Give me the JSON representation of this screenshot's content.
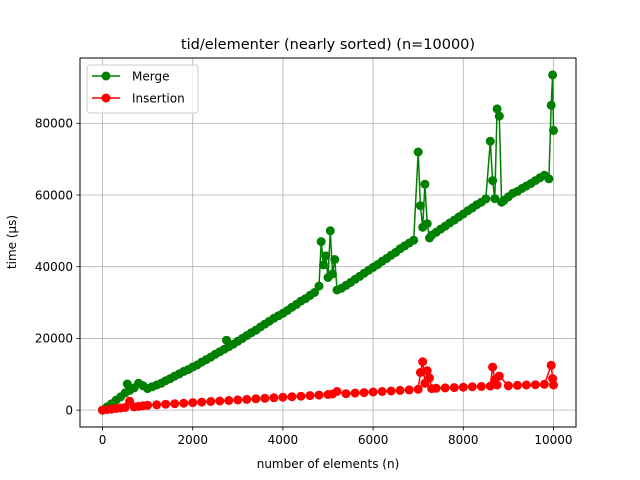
{
  "chart_data": {
    "type": "line",
    "title": "tid/elementer (nearly sorted) (n=10000)",
    "xlabel": "number of elements (n)",
    "ylabel": "time (µs)",
    "xlim": [
      -500,
      10500
    ],
    "ylim": [
      -4700,
      98200
    ],
    "x_ticks": [
      0,
      2000,
      4000,
      6000,
      8000,
      10000
    ],
    "y_ticks": [
      0,
      20000,
      40000,
      60000,
      80000
    ],
    "grid": true,
    "legend_position": "top-left",
    "series": [
      {
        "name": "Merge",
        "color": "#008000",
        "x": [
          0,
          100,
          200,
          300,
          400,
          500,
          550,
          600,
          700,
          800,
          900,
          1000,
          1100,
          1200,
          1300,
          1400,
          1500,
          1600,
          1700,
          1800,
          1900,
          2000,
          2100,
          2200,
          2300,
          2400,
          2500,
          2600,
          2700,
          2750,
          2800,
          2900,
          3000,
          3100,
          3200,
          3300,
          3400,
          3500,
          3600,
          3700,
          3800,
          3900,
          4000,
          4100,
          4200,
          4300,
          4400,
          4500,
          4600,
          4700,
          4800,
          4850,
          4900,
          4950,
          5000,
          5050,
          5100,
          5150,
          5200,
          5300,
          5400,
          5500,
          5600,
          5700,
          5800,
          5900,
          6000,
          6100,
          6200,
          6300,
          6400,
          6500,
          6600,
          6700,
          6800,
          6900,
          7000,
          7050,
          7100,
          7150,
          7200,
          7250,
          7300,
          7400,
          7500,
          7600,
          7700,
          7800,
          7900,
          8000,
          8100,
          8200,
          8300,
          8400,
          8500,
          8600,
          8650,
          8700,
          8750,
          8800,
          8850,
          8900,
          9000,
          9100,
          9200,
          9300,
          9400,
          9500,
          9600,
          9700,
          9800,
          9900,
          9950,
          9980,
          10000
        ],
        "values": [
          0,
          900,
          1800,
          2800,
          3700,
          4800,
          7300,
          5500,
          6200,
          7500,
          6800,
          6000,
          6500,
          7000,
          7500,
          8200,
          8800,
          9500,
          10100,
          10800,
          11300,
          12000,
          12600,
          13400,
          14100,
          14800,
          15600,
          16300,
          17000,
          19500,
          17700,
          18400,
          19200,
          20000,
          20800,
          21600,
          22300,
          23200,
          24000,
          24800,
          25600,
          26300,
          27000,
          27800,
          28700,
          29500,
          30400,
          31100,
          32000,
          32800,
          34600,
          47000,
          40500,
          43000,
          37000,
          50000,
          38000,
          42000,
          33500,
          34000,
          34800,
          35600,
          36500,
          37300,
          38200,
          39000,
          39800,
          40600,
          41500,
          42300,
          43200,
          44000,
          45000,
          45800,
          46600,
          47400,
          72000,
          57000,
          51000,
          63000,
          52000,
          48000,
          48800,
          49600,
          50500,
          51300,
          52200,
          53000,
          53900,
          54700,
          55600,
          56400,
          57300,
          58000,
          58900,
          75000,
          64000,
          59000,
          84000,
          82000,
          58000,
          58500,
          59500,
          60500,
          61000,
          61800,
          62500,
          63200,
          64000,
          64800,
          65500,
          64500,
          85000,
          93500,
          78000
        ]
      },
      {
        "name": "Insertion",
        "color": "#ff0000",
        "x": [
          0,
          100,
          200,
          300,
          400,
          500,
          600,
          700,
          800,
          900,
          1000,
          1200,
          1400,
          1600,
          1800,
          2000,
          2200,
          2400,
          2600,
          2800,
          3000,
          3200,
          3400,
          3600,
          3800,
          4000,
          4200,
          4400,
          4600,
          4800,
          5000,
          5100,
          5200,
          5400,
          5600,
          5800,
          6000,
          6200,
          6400,
          6600,
          6800,
          7000,
          7050,
          7100,
          7150,
          7200,
          7250,
          7300,
          7400,
          7600,
          7800,
          8000,
          8200,
          8400,
          8600,
          8650,
          8700,
          8750,
          8800,
          9000,
          9200,
          9400,
          9600,
          9800,
          9950,
          9980,
          10000
        ],
        "values": [
          0,
          150,
          300,
          450,
          600,
          750,
          2500,
          900,
          1050,
          1200,
          1350,
          1500,
          1650,
          1800,
          1950,
          2100,
          2250,
          2400,
          2550,
          2700,
          2850,
          3000,
          3150,
          3300,
          3450,
          3600,
          3750,
          3900,
          4050,
          4200,
          4350,
          4500,
          5200,
          4600,
          4750,
          4900,
          5050,
          5200,
          5350,
          5500,
          5650,
          5800,
          10500,
          13500,
          7500,
          11000,
          9000,
          6000,
          6100,
          6200,
          6300,
          6400,
          6500,
          6600,
          6700,
          12000,
          8500,
          7000,
          9500,
          6800,
          6900,
          7000,
          7100,
          7200,
          12500,
          8800,
          7000
        ]
      }
    ]
  }
}
